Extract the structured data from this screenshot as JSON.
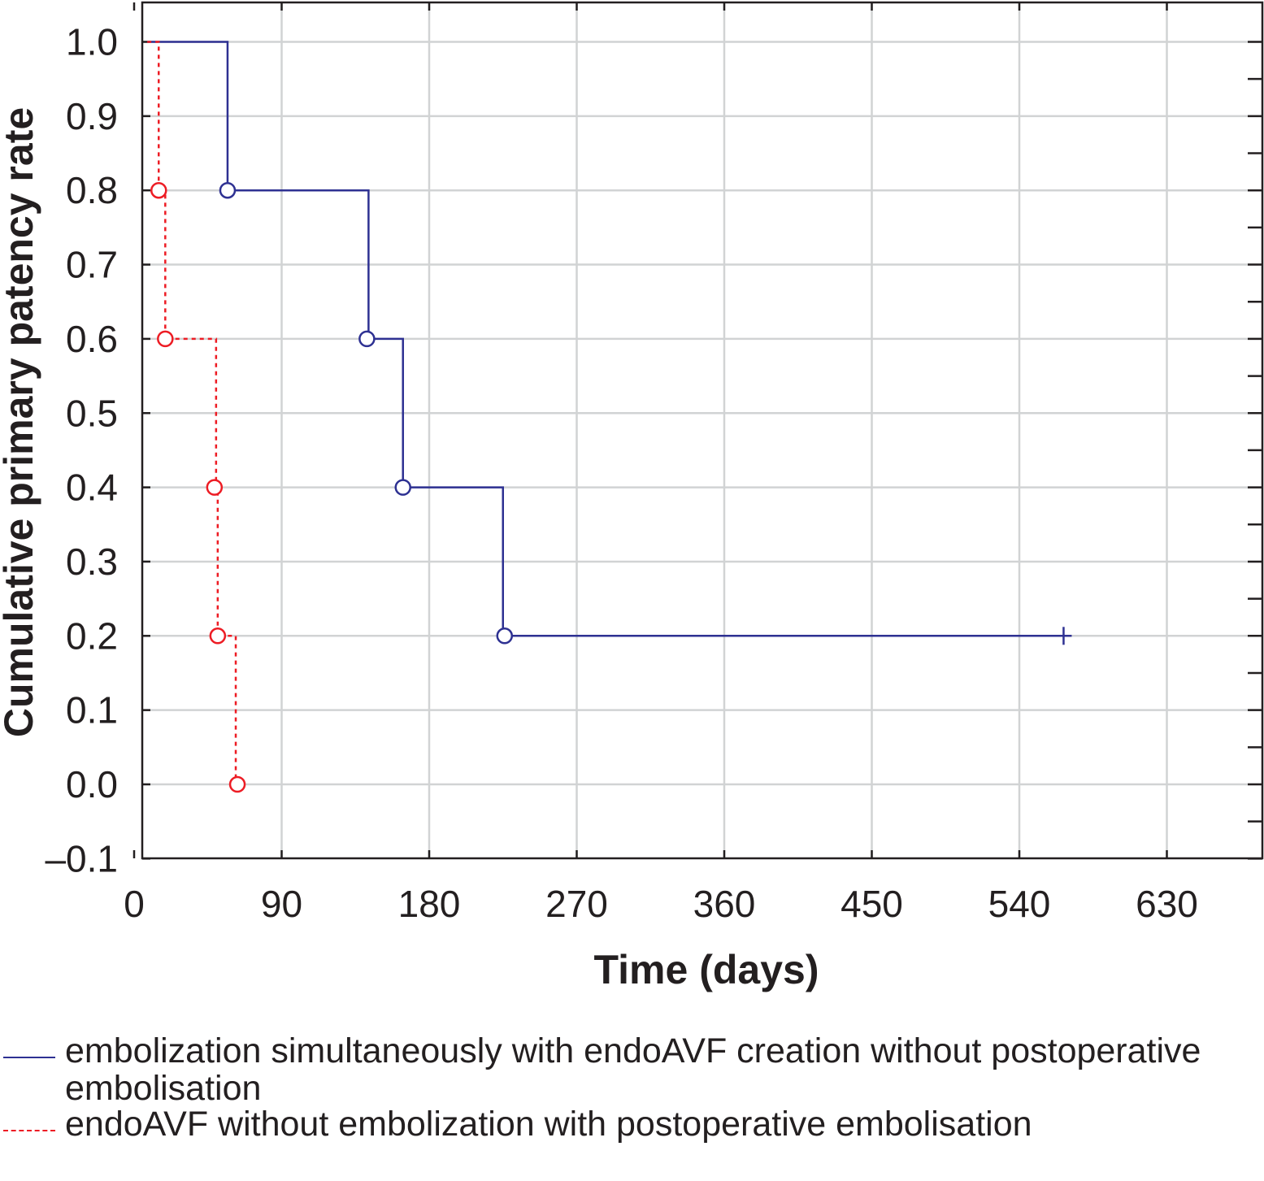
{
  "chart_data": {
    "type": "line",
    "subtype": "kaplan-meier step",
    "xlabel": "Time (days)",
    "ylabel": "Cumulative primary patency rate",
    "xlim": [
      0,
      700
    ],
    "ylim": [
      -0.1,
      1.05
    ],
    "x_ticks": [
      0,
      90,
      180,
      270,
      360,
      450,
      540,
      630
    ],
    "y_ticks": [
      -0.1,
      0.0,
      0.1,
      0.2,
      0.3,
      0.4,
      0.5,
      0.6,
      0.7,
      0.8,
      0.9,
      1.0
    ],
    "y_tick_labels": [
      "–0.1",
      "0.0",
      "0.1",
      "0.2",
      "0.3",
      "0.4",
      "0.5",
      "0.6",
      "0.7",
      "0.8",
      "0.9",
      "1.0"
    ],
    "grid": true,
    "legend_position": "bottom",
    "series": [
      {
        "name": "embolization simultaneously with endoAVF creation without postoperative embolisation",
        "color": "#2e3192",
        "line_style": "solid",
        "steps": [
          [
            8,
            1.0
          ],
          [
            57,
            0.8
          ],
          [
            143,
            0.6
          ],
          [
            164,
            0.4
          ],
          [
            225,
            0.2
          ],
          [
            567,
            0.2
          ]
        ],
        "events": [
          [
            57,
            0.8
          ],
          [
            142,
            0.6
          ],
          [
            164,
            0.4
          ],
          [
            226,
            0.2
          ]
        ],
        "censored": [
          [
            567,
            0.2
          ]
        ]
      },
      {
        "name": "endoAVF without embolization with postoperative embolisation",
        "color": "#ed1c24",
        "line_style": "dashed",
        "steps": [
          [
            8,
            1.0
          ],
          [
            15,
            0.8
          ],
          [
            19,
            0.6
          ],
          [
            50,
            0.4
          ],
          [
            51,
            0.2
          ],
          [
            62,
            0.0
          ]
        ],
        "events": [
          [
            15,
            0.8
          ],
          [
            19,
            0.6
          ],
          [
            49,
            0.4
          ],
          [
            51,
            0.2
          ],
          [
            63,
            0.0
          ]
        ],
        "censored": []
      }
    ]
  }
}
